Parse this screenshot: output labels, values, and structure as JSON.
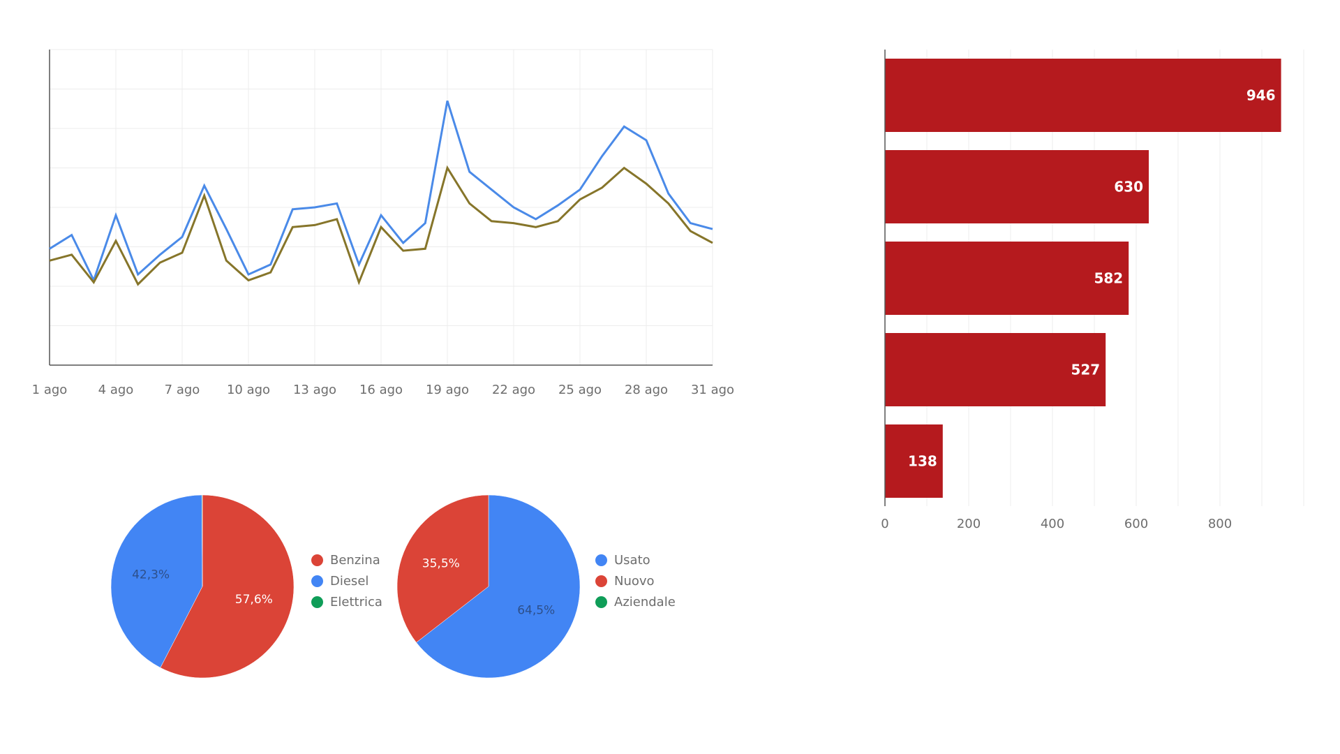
{
  "chart_data": [
    {
      "type": "line",
      "x": [
        "1 ago",
        "2 ago",
        "3 ago",
        "4 ago",
        "5 ago",
        "6 ago",
        "7 ago",
        "8 ago",
        "9 ago",
        "10 ago",
        "11 ago",
        "12 ago",
        "13 ago",
        "14 ago",
        "15 ago",
        "16 ago",
        "17 ago",
        "18 ago",
        "19 ago",
        "20 ago",
        "21 ago",
        "22 ago",
        "23 ago",
        "24 ago",
        "25 ago",
        "26 ago",
        "27 ago",
        "28 ago",
        "29 ago",
        "30 ago",
        "31 ago"
      ],
      "x_tick_labels": [
        "1 ago",
        "4 ago",
        "7 ago",
        "10 ago",
        "13 ago",
        "16 ago",
        "19 ago",
        "22 ago",
        "25 ago",
        "28 ago",
        "31 ago"
      ],
      "series": [
        {
          "color": "#4a8ae8",
          "values": [
            2.95,
            3.3,
            2.15,
            3.8,
            2.3,
            2.8,
            3.25,
            4.55,
            3.45,
            2.3,
            2.55,
            3.95,
            4.0,
            4.1,
            2.55,
            3.8,
            3.1,
            3.6,
            6.7,
            4.9,
            4.45,
            4.0,
            3.7,
            4.05,
            4.45,
            5.3,
            6.05,
            5.7,
            4.35,
            3.6,
            3.45
          ],
          "values_note": ""
        },
        {
          "color": "#86752a",
          "values": [
            2.65,
            2.8,
            2.1,
            3.15,
            2.05,
            2.6,
            2.85,
            4.3,
            2.65,
            2.15,
            2.35,
            3.5,
            3.55,
            3.7,
            2.1,
            3.5,
            2.9,
            2.95,
            5.0,
            4.1,
            3.65,
            3.6,
            3.5,
            3.65,
            4.2,
            4.5,
            5.0,
            4.6,
            4.1,
            3.4,
            3.1
          ]
        }
      ],
      "ylim": [
        0,
        8
      ],
      "grid": true
    },
    {
      "type": "bar",
      "orientation": "horizontal",
      "color": "#b51a1e",
      "values": [
        946,
        630,
        582,
        527,
        138
      ],
      "value_labels": [
        "946",
        "630",
        "582",
        "527",
        "138"
      ],
      "xlim": [
        0,
        1000
      ],
      "x_tick_labels": [
        "0",
        "200",
        "400",
        "600",
        "800"
      ],
      "grid": true
    },
    {
      "type": "pie",
      "labels": [
        "Benzina",
        "Diesel",
        "Elettrica"
      ],
      "values": [
        57.6,
        42.3,
        0.1
      ],
      "value_labels": [
        "57,6%",
        "42,3%",
        ""
      ],
      "colors": [
        "#db4437",
        "#4285f4",
        "#0f9d58"
      ],
      "legend": "right"
    },
    {
      "type": "pie",
      "labels": [
        "Usato",
        "Nuovo",
        "Aziendale"
      ],
      "values": [
        64.5,
        35.5,
        0.0
      ],
      "value_labels": [
        "64,5%",
        "35,5%",
        ""
      ],
      "colors": [
        "#4285f4",
        "#db4437",
        "#0f9d58"
      ],
      "legend": "right"
    }
  ]
}
